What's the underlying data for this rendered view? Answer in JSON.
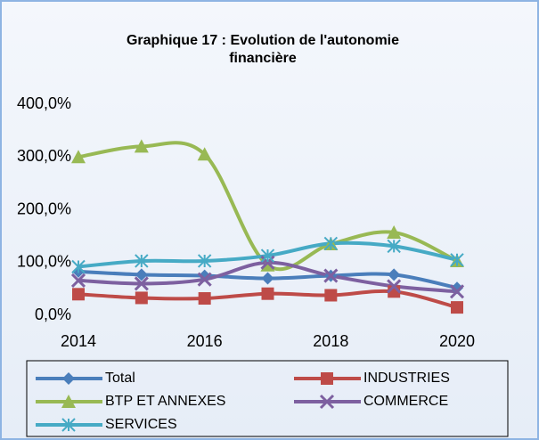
{
  "chart_data": {
    "type": "line",
    "title": "Graphique 17 : Evolution de l'autonomie financière",
    "x": [
      2014,
      2015,
      2016,
      2017,
      2018,
      2019,
      2020
    ],
    "xlim": [
      2014,
      2020
    ],
    "xticks": [
      2014,
      2016,
      2018,
      2020
    ],
    "ylim": [
      0,
      400
    ],
    "yticks": [
      {
        "value": 0,
        "label": "0,0%"
      },
      {
        "value": 100,
        "label": "100,0%"
      },
      {
        "value": 200,
        "label": "200,0%"
      },
      {
        "value": 300,
        "label": "300,0%"
      },
      {
        "value": 400,
        "label": "400,0%"
      }
    ],
    "grid": false,
    "legend": "bottom",
    "series": [
      {
        "name": "Total",
        "color": "#4a7ebb",
        "marker": "diamond",
        "values": [
          83,
          77,
          75,
          70,
          75,
          77,
          52
        ]
      },
      {
        "name": "INDUSTRIES",
        "color": "#be4b48",
        "marker": "square",
        "values": [
          40,
          33,
          32,
          41,
          38,
          45,
          15
        ]
      },
      {
        "name": "BTP ET ANNEXES",
        "color": "#98b954",
        "marker": "triangle",
        "values": [
          300,
          320,
          305,
          95,
          135,
          157,
          103
        ]
      },
      {
        "name": "COMMERCE",
        "color": "#7d60a0",
        "marker": "x",
        "values": [
          66,
          60,
          68,
          100,
          75,
          55,
          45
        ]
      },
      {
        "name": "SERVICES",
        "color": "#46aac5",
        "marker": "star",
        "values": [
          92,
          103,
          103,
          113,
          136,
          131,
          105
        ]
      }
    ]
  }
}
